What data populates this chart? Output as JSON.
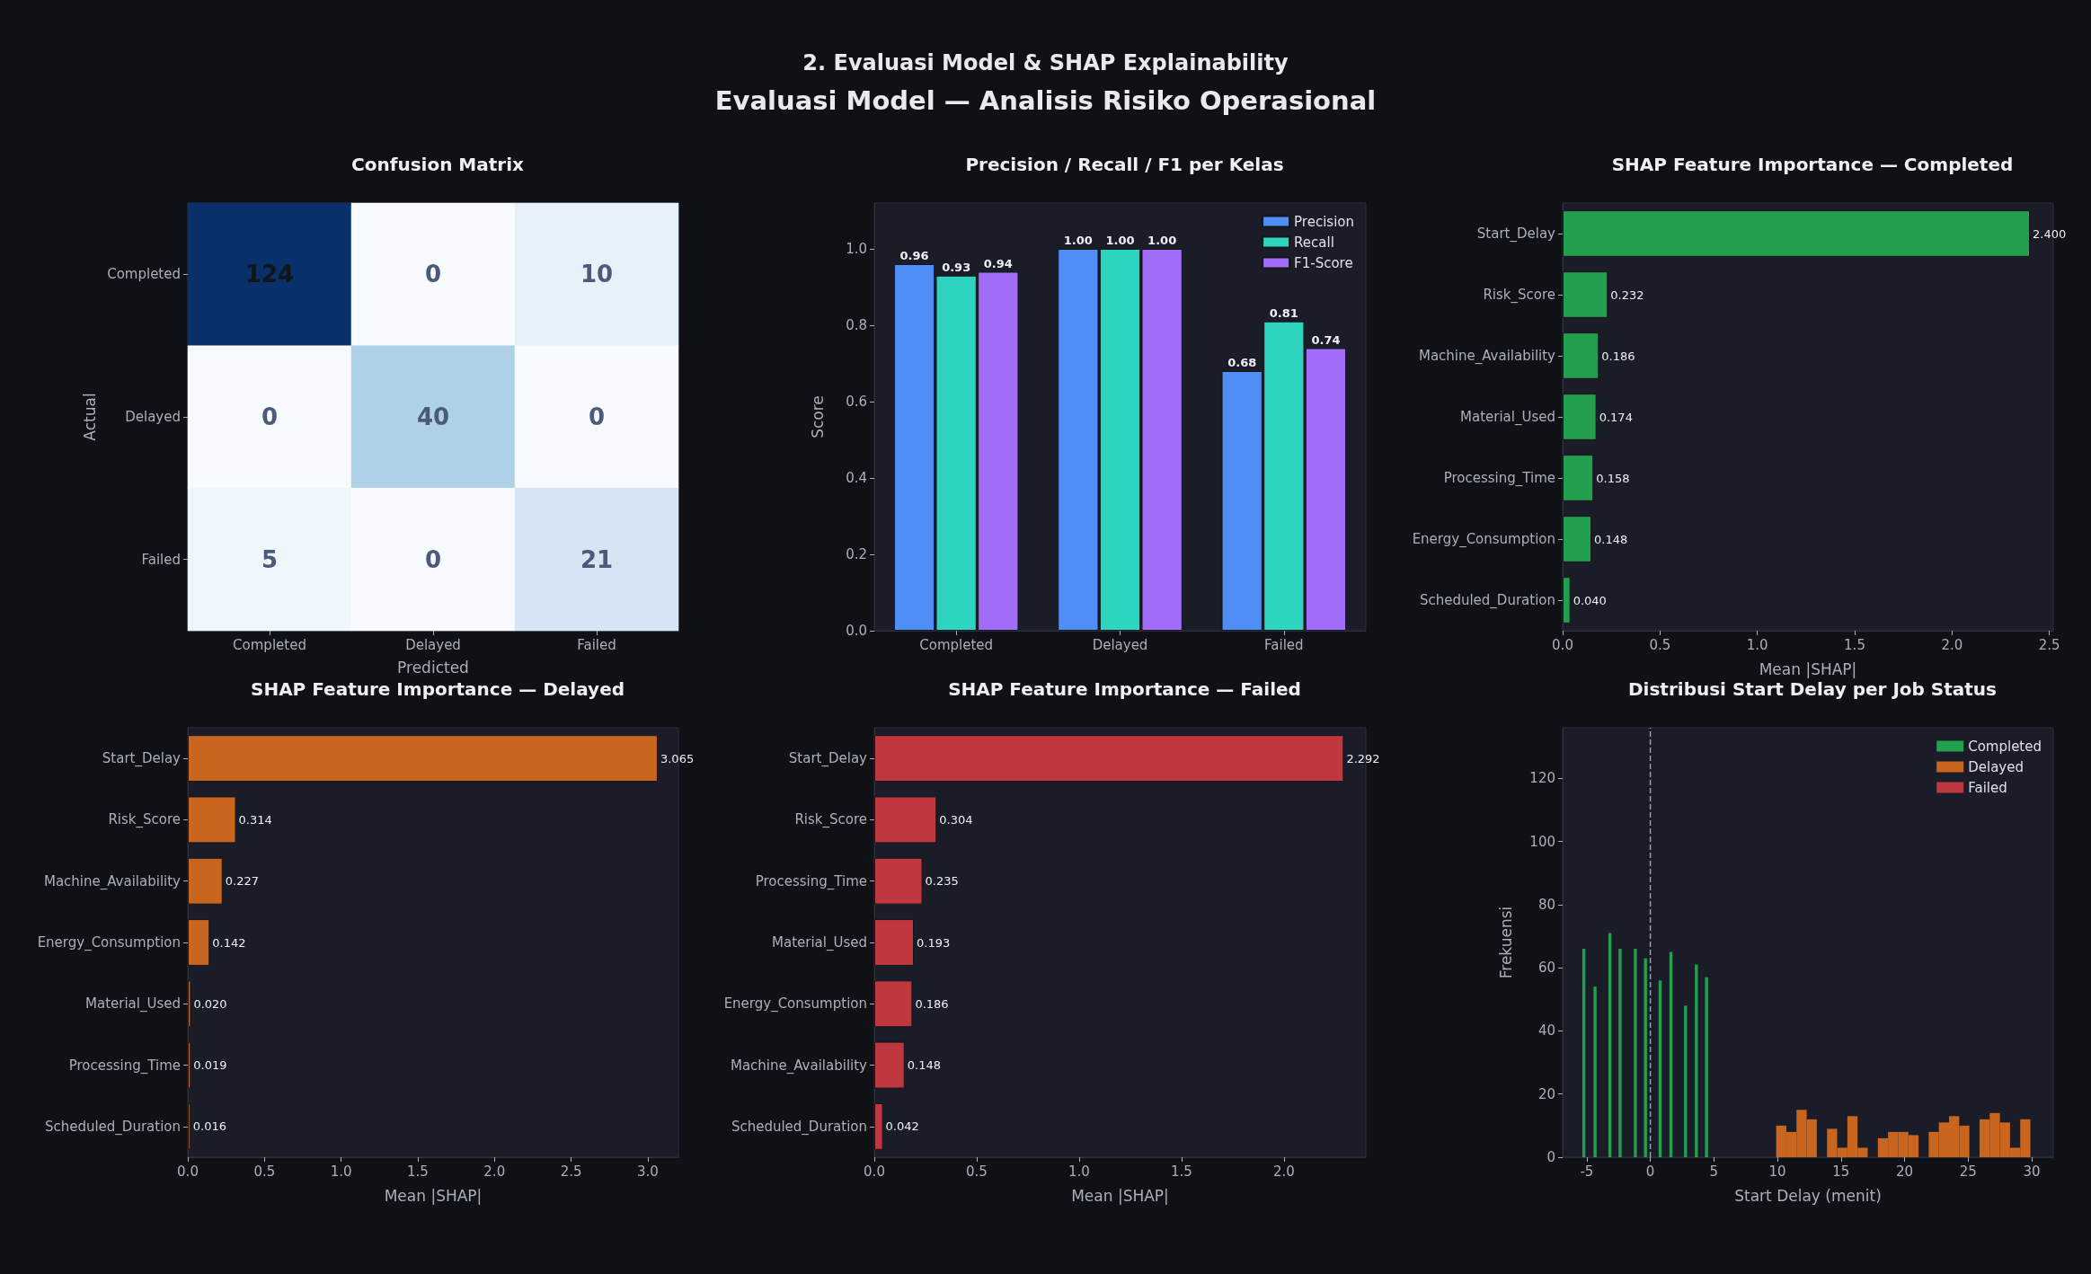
{
  "chart_data": [
    {
      "type": "heatmap",
      "title": "Confusion Matrix",
      "xlabel": "Predicted",
      "ylabel": "Actual",
      "annotations": [
        "2. Evaluasi Model & SHAP Explainability",
        "Evaluasi Model — Analisis Risiko Operasional"
      ],
      "categories": [
        "Completed",
        "Delayed",
        "Failed"
      ],
      "y_categories": [
        "Completed",
        "Delayed",
        "Failed"
      ],
      "cells": [
        [
          124,
          0,
          10
        ],
        [
          0,
          40,
          0
        ],
        [
          5,
          0,
          21
        ]
      ],
      "data_labels": true
    },
    {
      "type": "bar",
      "title": "Precision / Recall / F1 per Kelas",
      "ylabel": "Score",
      "categories": [
        "Completed",
        "Delayed",
        "Failed"
      ],
      "series": [
        {
          "name": "Precision",
          "color": "#4f8ef7",
          "values": [
            0.96,
            1.0,
            0.68
          ],
          "value_labels": [
            "0.96",
            "1.00",
            "0.68"
          ]
        },
        {
          "name": "Recall",
          "color": "#2dd4bf",
          "values": [
            0.93,
            1.0,
            0.81
          ],
          "value_labels": [
            "0.93",
            "1.00",
            "0.81"
          ]
        },
        {
          "name": "F1-Score",
          "color": "#a06cf8",
          "values": [
            0.94,
            1.0,
            0.74
          ],
          "value_labels": [
            "0.94",
            "1.00",
            "0.74"
          ]
        }
      ],
      "ylim": [
        0,
        1.12
      ],
      "yticks": [
        {
          "value": 0,
          "label": "0.0"
        },
        {
          "value": 0.2,
          "label": "0.2"
        },
        {
          "value": 0.4,
          "label": "0.4"
        },
        {
          "value": 0.6,
          "label": "0.6"
        },
        {
          "value": 0.8,
          "label": "0.8"
        },
        {
          "value": 1,
          "label": "1.0"
        }
      ],
      "legend": "top right",
      "grid": false
    },
    {
      "type": "bar",
      "orientation": "horizontal",
      "title": "SHAP Feature Importance — Completed",
      "xlabel": "Mean |SHAP|",
      "categories": [
        "Start_Delay",
        "Risk_Score",
        "Machine_Availability",
        "Material_Used",
        "Processing_Time",
        "Energy_Consumption",
        "Scheduled_Duration"
      ],
      "values": [
        2.4,
        0.232,
        0.186,
        0.174,
        0.158,
        0.148,
        0.04
      ],
      "value_labels": [
        "2.400",
        "0.232",
        "0.186",
        "0.174",
        "0.158",
        "0.148",
        "0.040"
      ],
      "color": "#22a050",
      "xlim": [
        0,
        2.52
      ],
      "xticks": [
        {
          "value": 0,
          "label": "0.0"
        },
        {
          "value": 0.5,
          "label": "0.5"
        },
        {
          "value": 1,
          "label": "1.0"
        },
        {
          "value": 1.5,
          "label": "1.5"
        },
        {
          "value": 2,
          "label": "2.0"
        },
        {
          "value": 2.5,
          "label": "2.5"
        }
      ],
      "grid": false
    },
    {
      "type": "bar",
      "orientation": "horizontal",
      "title": "SHAP Feature Importance — Delayed",
      "xlabel": "Mean |SHAP|",
      "categories": [
        "Start_Delay",
        "Risk_Score",
        "Machine_Availability",
        "Energy_Consumption",
        "Material_Used",
        "Processing_Time",
        "Scheduled_Duration"
      ],
      "values": [
        3.065,
        0.314,
        0.227,
        0.142,
        0.02,
        0.019,
        0.016
      ],
      "value_labels": [
        "3.065",
        "0.314",
        "0.227",
        "0.142",
        "0.020",
        "0.019",
        "0.016"
      ],
      "color": "#c8651f",
      "xlim": [
        0,
        3.2
      ],
      "xticks": [
        {
          "value": 0,
          "label": "0.0"
        },
        {
          "value": 0.5,
          "label": "0.5"
        },
        {
          "value": 1,
          "label": "1.0"
        },
        {
          "value": 1.5,
          "label": "1.5"
        },
        {
          "value": 2,
          "label": "2.0"
        },
        {
          "value": 2.5,
          "label": "2.5"
        },
        {
          "value": 3,
          "label": "3.0"
        }
      ],
      "grid": false
    },
    {
      "type": "bar",
      "orientation": "horizontal",
      "title": "SHAP Feature Importance — Failed",
      "xlabel": "Mean |SHAP|",
      "categories": [
        "Start_Delay",
        "Risk_Score",
        "Processing_Time",
        "Material_Used",
        "Energy_Consumption",
        "Machine_Availability",
        "Scheduled_Duration"
      ],
      "values": [
        2.292,
        0.304,
        0.235,
        0.193,
        0.186,
        0.148,
        0.042
      ],
      "value_labels": [
        "2.292",
        "0.304",
        "0.235",
        "0.193",
        "0.186",
        "0.148",
        "0.042"
      ],
      "color": "#c0383f",
      "xlim": [
        0,
        2.4
      ],
      "xticks": [
        {
          "value": 0,
          "label": "0.0"
        },
        {
          "value": 0.5,
          "label": "0.5"
        },
        {
          "value": 1,
          "label": "1.0"
        },
        {
          "value": 1.5,
          "label": "1.5"
        },
        {
          "value": 2,
          "label": "2.0"
        }
      ],
      "grid": false
    },
    {
      "type": "bar",
      "title": "Distribusi Start Delay per Job Status",
      "xlabel": "Start Delay (menit)",
      "ylabel": "Frekuensi",
      "series": [
        {
          "name": "Completed",
          "color": "#22a050",
          "x": [
            -4.85,
            -3.97,
            -2.8,
            -2.0,
            -0.8,
            0,
            1.15,
            2.0,
            3.15,
            4.0,
            4.8
          ],
          "values": [
            66,
            54,
            71,
            66,
            66,
            63,
            56,
            65,
            48,
            61,
            57
          ]
        },
        {
          "name": "Delayed",
          "color": "#c8651f",
          "x": [
            10.4,
            11.2,
            12.0,
            12.8,
            14.4,
            15.2,
            16.0,
            16.8,
            18.4,
            19.2,
            20.0,
            20.8,
            22.4,
            23.2,
            24.0,
            24.8,
            26.4,
            27.2,
            28.0,
            28.8,
            29.6
          ],
          "values": [
            10,
            8,
            15,
            12,
            9,
            3,
            13,
            3,
            6,
            8,
            8,
            7,
            8,
            11,
            13,
            10,
            12,
            14,
            11,
            3,
            12
          ]
        },
        {
          "name": "Failed",
          "color": "#c0383f"
        }
      ],
      "xlim": [
        -6.9,
        31.7
      ],
      "xticks": [
        -5,
        0,
        5,
        10,
        15,
        20,
        25,
        30
      ],
      "ylim": [
        0,
        136
      ],
      "yticks": [
        0,
        20,
        40,
        60,
        80,
        100,
        120
      ],
      "ref_lines": [
        {
          "axis": "x",
          "value": 0,
          "color": "#9aa0aa",
          "line_style": "dashed"
        }
      ],
      "legend": "top right",
      "grid": false
    }
  ]
}
